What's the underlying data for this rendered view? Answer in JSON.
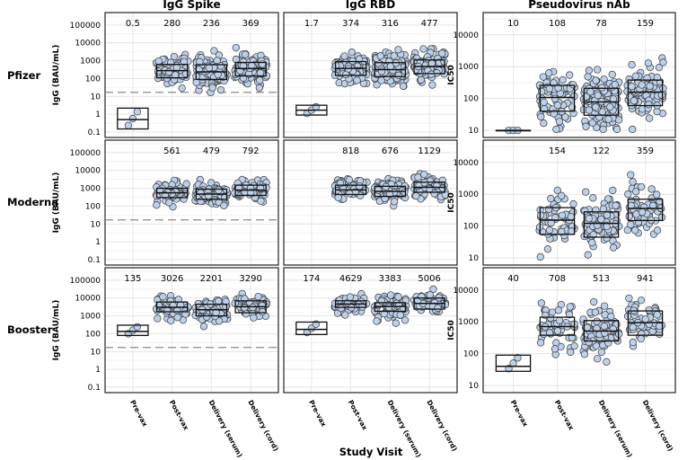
{
  "figure": {
    "x_axis_title": "Study Visit",
    "visits": [
      "Pre-vax",
      "Post-vax",
      "Delivery (serum)",
      "Delivery (cord)"
    ]
  },
  "chart_data": [
    {
      "type": "scatter",
      "panel": "Pfizer / IgG Spike",
      "column_title": "IgG Spike",
      "row_label": "Pfizer",
      "ylabel": "IgG (BAU/mL)",
      "scale": "log10",
      "ylim": [
        0.05,
        500000
      ],
      "ticks": [
        "100000",
        "10000",
        "1000",
        "100",
        "10",
        "1",
        "0.1"
      ],
      "threshold": 17,
      "gm_labels": [
        "0.5",
        "280",
        "236",
        "369"
      ],
      "gm": [
        0.5,
        280,
        236,
        369
      ],
      "box_low": [
        0.15,
        110,
        90,
        140
      ],
      "box_high": [
        2.2,
        620,
        600,
        800
      ],
      "spread": [
        0.25,
        0.42,
        0.42,
        0.4
      ],
      "n": [
        3,
        85,
        140,
        95
      ]
    },
    {
      "type": "scatter",
      "panel": "Pfizer / IgG RBD",
      "column_title": "IgG RBD",
      "row_label": "Pfizer",
      "ylabel": "",
      "scale": "log10",
      "ylim": [
        0.05,
        500000
      ],
      "ticks": [],
      "threshold": null,
      "gm_labels": [
        "1.7",
        "374",
        "316",
        "477"
      ],
      "gm": [
        1.7,
        374,
        316,
        477
      ],
      "box_low": [
        0.9,
        150,
        130,
        190
      ],
      "box_high": [
        3.2,
        900,
        780,
        1100
      ],
      "spread": [
        0.12,
        0.4,
        0.4,
        0.4
      ],
      "n": [
        3,
        85,
        140,
        95
      ]
    },
    {
      "type": "scatter",
      "panel": "Pfizer / Pseudovirus nAb",
      "column_title": "Pseudovirus nAb",
      "row_label": "Pfizer",
      "ylabel": "IC50",
      "scale": "log10",
      "ylim": [
        6,
        50000
      ],
      "ticks": [
        "10000",
        "1000",
        "100",
        "10"
      ],
      "threshold": null,
      "gm_labels": [
        "10",
        "108",
        "78",
        "159"
      ],
      "gm": [
        10,
        108,
        78,
        159
      ],
      "box_low": [
        10,
        40,
        30,
        60
      ],
      "box_high": [
        10,
        260,
        210,
        380
      ],
      "spread": [
        0.01,
        0.42,
        0.42,
        0.42
      ],
      "n": [
        3,
        85,
        140,
        95
      ]
    },
    {
      "type": "scatter",
      "panel": "Moderna / IgG Spike",
      "column_title": "IgG Spike",
      "row_label": "Moderna",
      "ylabel": "IgG (BAU/mL)",
      "scale": "log10",
      "ylim": [
        0.05,
        500000
      ],
      "ticks": [
        "100000",
        "10000",
        "1000",
        "100",
        "10",
        "1",
        "0.1"
      ],
      "threshold": 17,
      "gm_labels": [
        "",
        "561",
        "479",
        "792"
      ],
      "gm": [
        null,
        561,
        479,
        792
      ],
      "box_low": [
        null,
        300,
        240,
        400
      ],
      "box_high": [
        null,
        1000,
        900,
        1500
      ],
      "spread": [
        0,
        0.3,
        0.3,
        0.3
      ],
      "n": [
        0,
        60,
        90,
        65
      ]
    },
    {
      "type": "scatter",
      "panel": "Moderna / IgG RBD",
      "column_title": "IgG RBD",
      "row_label": "Moderna",
      "ylabel": "",
      "scale": "log10",
      "ylim": [
        0.05,
        500000
      ],
      "ticks": [],
      "threshold": null,
      "gm_labels": [
        "",
        "818",
        "676",
        "1129"
      ],
      "gm": [
        null,
        818,
        676,
        1129
      ],
      "box_low": [
        null,
        450,
        350,
        600
      ],
      "box_high": [
        null,
        1500,
        1300,
        2200
      ],
      "spread": [
        0,
        0.3,
        0.3,
        0.3
      ],
      "n": [
        0,
        60,
        90,
        65
      ]
    },
    {
      "type": "scatter",
      "panel": "Moderna / Pseudovirus nAb",
      "column_title": "Pseudovirus nAb",
      "row_label": "Moderna",
      "ylabel": "IC50",
      "scale": "log10",
      "ylim": [
        6,
        50000
      ],
      "ticks": [
        "10000",
        "1000",
        "100",
        "10"
      ],
      "threshold": null,
      "gm_labels": [
        "",
        "154",
        "122",
        "359"
      ],
      "gm": [
        null,
        154,
        122,
        359
      ],
      "box_low": [
        null,
        55,
        45,
        150
      ],
      "box_high": [
        null,
        380,
        280,
        700
      ],
      "spread": [
        0,
        0.38,
        0.38,
        0.38
      ],
      "n": [
        0,
        60,
        90,
        65
      ]
    },
    {
      "type": "scatter",
      "panel": "Booster / IgG Spike",
      "column_title": "IgG Spike",
      "row_label": "Booster",
      "ylabel": "IgG (BAU/mL)",
      "scale": "log10",
      "ylim": [
        0.05,
        500000
      ],
      "ticks": [
        "100000",
        "10000",
        "1000",
        "100",
        "10",
        "1",
        "0.1"
      ],
      "threshold": 17,
      "gm_labels": [
        "135",
        "3026",
        "2201",
        "3290"
      ],
      "gm": [
        135,
        3026,
        2201,
        3290
      ],
      "box_low": [
        80,
        1700,
        1000,
        1500
      ],
      "box_high": [
        300,
        6000,
        4500,
        7000
      ],
      "spread": [
        0.15,
        0.32,
        0.32,
        0.32
      ],
      "n": [
        3,
        55,
        80,
        55
      ]
    },
    {
      "type": "scatter",
      "panel": "Booster / IgG RBD",
      "column_title": "IgG RBD",
      "row_label": "Booster",
      "ylabel": "",
      "scale": "log10",
      "ylim": [
        0.05,
        500000
      ],
      "ticks": [],
      "threshold": null,
      "gm_labels": [
        "174",
        "4629",
        "3383",
        "5006"
      ],
      "gm": [
        174,
        4629,
        3383,
        5006
      ],
      "box_low": [
        90,
        3000,
        1800,
        2400
      ],
      "box_high": [
        450,
        7000,
        5500,
        10000
      ],
      "spread": [
        0.15,
        0.3,
        0.32,
        0.3
      ],
      "n": [
        3,
        55,
        80,
        55
      ]
    },
    {
      "type": "scatter",
      "panel": "Booster / Pseudovirus nAb",
      "column_title": "Pseudovirus nAb",
      "row_label": "Booster",
      "ylabel": "IC50",
      "scale": "log10",
      "ylim": [
        6,
        50000
      ],
      "ticks": [
        "10000",
        "1000",
        "100",
        "10"
      ],
      "threshold": null,
      "gm_labels": [
        "40",
        "708",
        "513",
        "941"
      ],
      "gm": [
        40,
        708,
        513,
        941
      ],
      "box_low": [
        28,
        380,
        250,
        380
      ],
      "box_high": [
        90,
        1400,
        1100,
        2200
      ],
      "spread": [
        0.15,
        0.38,
        0.38,
        0.38
      ],
      "n": [
        3,
        55,
        80,
        55
      ]
    }
  ]
}
